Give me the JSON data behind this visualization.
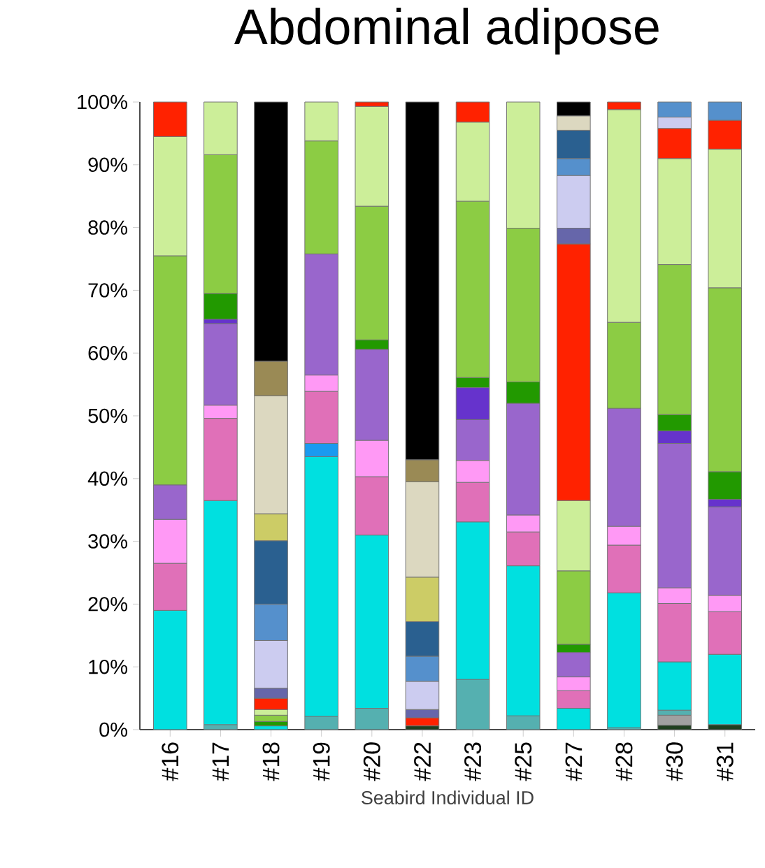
{
  "chart_data": {
    "type": "bar",
    "stacked": true,
    "title": "Abdominal adipose",
    "xlabel": "Seabird Individual ID",
    "categories": [
      "#16",
      "#17",
      "#18",
      "#19",
      "#20",
      "#22",
      "#23",
      "#25",
      "#27",
      "#28",
      "#30",
      "#31"
    ],
    "ylim": [
      0,
      100
    ],
    "yticks": [
      {
        "value": 0,
        "label": "0%"
      },
      {
        "value": 10,
        "label": "10%"
      },
      {
        "value": 20,
        "label": "20%"
      },
      {
        "value": 30,
        "label": "30%"
      },
      {
        "value": 40,
        "label": "40%"
      },
      {
        "value": 50,
        "label": "50%"
      },
      {
        "value": 60,
        "label": "60%"
      },
      {
        "value": 70,
        "label": "70%"
      },
      {
        "value": 80,
        "label": "80%"
      },
      {
        "value": 90,
        "label": "90%"
      },
      {
        "value": 100,
        "label": "100%"
      }
    ],
    "series": [
      {
        "color": "#1f3f1f",
        "values": [
          null,
          null,
          null,
          null,
          null,
          0.6,
          null,
          null,
          null,
          null,
          0.7,
          0.8
        ]
      },
      {
        "color": "#a0a0a0",
        "values": [
          null,
          null,
          null,
          null,
          null,
          null,
          null,
          null,
          null,
          null,
          1.6,
          null
        ]
      },
      {
        "color": "#55b0b0",
        "values": [
          null,
          0.8,
          null,
          2.1,
          3.4,
          null,
          8.0,
          2.2,
          null,
          0.3,
          0.8,
          null
        ]
      },
      {
        "color": "#00e0e0",
        "values": [
          19,
          35.7,
          0.6,
          41.4,
          27.6,
          null,
          25.1,
          23.9,
          3.4,
          21.5,
          7.7,
          11.2
        ]
      },
      {
        "color": "#1a9af0",
        "values": [
          null,
          null,
          null,
          2.1,
          null,
          null,
          null,
          null,
          null,
          null,
          null,
          null
        ]
      },
      {
        "color": "#e070b8",
        "values": [
          7.5,
          13.1,
          null,
          8.3,
          9.3,
          null,
          6.3,
          5.4,
          2.8,
          7.6,
          9.3,
          6.8
        ]
      },
      {
        "color": "#ff99f5",
        "values": [
          7,
          2.1,
          null,
          2.6,
          5.8,
          null,
          3.5,
          2.7,
          2.2,
          3.0,
          2.5,
          2.6
        ]
      },
      {
        "color": "#9966cc",
        "values": [
          5.5,
          13,
          null,
          19.3,
          14.5,
          null,
          6.5,
          17.8,
          3.9,
          18.8,
          23.0,
          14.1
        ]
      },
      {
        "color": "#6633cc",
        "values": [
          null,
          0.7,
          null,
          null,
          null,
          null,
          5.1,
          null,
          null,
          null,
          2.0,
          1.2
        ]
      },
      {
        "color": "#229900",
        "values": [
          null,
          4.1,
          0.7,
          null,
          1.5,
          null,
          1.6,
          3.4,
          1.3,
          null,
          2.6,
          4.4
        ]
      },
      {
        "color": "#8ccc44",
        "values": [
          36.5,
          22.1,
          1.0,
          18.0,
          21.3,
          null,
          28.1,
          24.5,
          11.7,
          13.7,
          23.9,
          29.3
        ]
      },
      {
        "color": "#ccee99",
        "values": [
          19,
          8.4,
          0.9,
          6.2,
          15.9,
          null,
          12.6,
          20.1,
          11.2,
          33.9,
          16.9,
          22.1
        ]
      },
      {
        "color": "#ff2200",
        "values": [
          5.5,
          null,
          1.8,
          null,
          0.7,
          1.3,
          3.2,
          null,
          40.9,
          1.2,
          4.8,
          4.6
        ]
      },
      {
        "color": "#6666aa",
        "values": [
          null,
          null,
          1.6,
          null,
          null,
          1.3,
          null,
          null,
          2.5,
          null,
          null,
          null
        ]
      },
      {
        "color": "#ccccf0",
        "values": [
          null,
          null,
          7.6,
          null,
          null,
          4.5,
          null,
          null,
          8.4,
          null,
          1.8,
          null
        ]
      },
      {
        "color": "#5590cc",
        "values": [
          null,
          null,
          5.8,
          null,
          null,
          4.0,
          null,
          null,
          2.7,
          null,
          2.4,
          2.9
        ]
      },
      {
        "color": "#2a6090",
        "values": [
          null,
          null,
          10.1,
          null,
          null,
          5.5,
          null,
          null,
          4.5,
          null,
          null,
          null
        ]
      },
      {
        "color": "#cccc66",
        "values": [
          null,
          null,
          4.3,
          null,
          null,
          7.1,
          null,
          null,
          null,
          null,
          null,
          null
        ]
      },
      {
        "color": "#dcd8c0",
        "values": [
          null,
          null,
          18.8,
          null,
          null,
          15.2,
          null,
          null,
          2.3,
          null,
          null,
          null
        ]
      },
      {
        "color": "#9a8a55",
        "values": [
          null,
          null,
          5.5,
          null,
          null,
          3.5,
          null,
          null,
          null,
          null,
          null,
          null
        ]
      },
      {
        "color": "#000000",
        "values": [
          null,
          null,
          41.3,
          null,
          null,
          57.0,
          null,
          null,
          2.2,
          null,
          null,
          null
        ]
      }
    ]
  }
}
